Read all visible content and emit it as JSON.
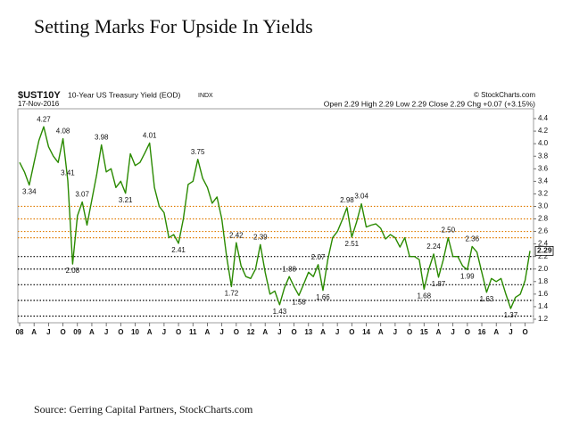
{
  "chart_data": {
    "type": "line",
    "title": "Setting Marks For Upside In Yields",
    "source": "Source: Gerring Capital Partners, StockCharts.com",
    "symbol": "$UST10Y",
    "description": "10-Year US Treasury Yield (EOD)",
    "exchange": "INDX",
    "date": "17-Nov-2016",
    "credit": "© StockCharts.com",
    "quote": "Open 2.29 High 2.29 Low 2.29 Close 2.29 Chg +0.07 (+3.15%)",
    "color": "#2a8a00",
    "x": [
      "2008-01",
      "2008-02",
      "2008-03",
      "2008-04",
      "2008-05",
      "2008-06",
      "2008-07",
      "2008-08",
      "2008-09",
      "2008-10",
      "2008-11",
      "2008-12",
      "2009-01",
      "2009-02",
      "2009-03",
      "2009-04",
      "2009-05",
      "2009-06",
      "2009-07",
      "2009-08",
      "2009-09",
      "2009-10",
      "2009-11",
      "2009-12",
      "2010-01",
      "2010-02",
      "2010-03",
      "2010-04",
      "2010-05",
      "2010-06",
      "2010-07",
      "2010-08",
      "2010-09",
      "2010-10",
      "2010-11",
      "2010-12",
      "2011-01",
      "2011-02",
      "2011-03",
      "2011-04",
      "2011-05",
      "2011-06",
      "2011-07",
      "2011-08",
      "2011-09",
      "2011-10",
      "2011-11",
      "2011-12",
      "2012-01",
      "2012-02",
      "2012-03",
      "2012-04",
      "2012-05",
      "2012-06",
      "2012-07",
      "2012-08",
      "2012-09",
      "2012-10",
      "2012-11",
      "2012-12",
      "2013-01",
      "2013-02",
      "2013-03",
      "2013-04",
      "2013-05",
      "2013-06",
      "2013-07",
      "2013-08",
      "2013-09",
      "2013-10",
      "2013-11",
      "2013-12",
      "2014-01",
      "2014-02",
      "2014-03",
      "2014-04",
      "2014-05",
      "2014-06",
      "2014-07",
      "2014-08",
      "2014-09",
      "2014-10",
      "2014-11",
      "2014-12",
      "2015-01",
      "2015-02",
      "2015-03",
      "2015-04",
      "2015-05",
      "2015-06",
      "2015-07",
      "2015-08",
      "2015-09",
      "2015-10",
      "2015-11",
      "2015-12",
      "2016-01",
      "2016-02",
      "2016-03",
      "2016-04",
      "2016-05",
      "2016-06",
      "2016-07",
      "2016-08",
      "2016-09",
      "2016-10",
      "2016-11"
    ],
    "values": [
      3.7,
      3.55,
      3.34,
      3.7,
      4.05,
      4.27,
      3.95,
      3.8,
      3.7,
      4.08,
      3.41,
      2.08,
      2.85,
      3.07,
      2.7,
      3.1,
      3.5,
      3.98,
      3.55,
      3.6,
      3.3,
      3.4,
      3.21,
      3.84,
      3.65,
      3.7,
      3.85,
      4.01,
      3.3,
      3.0,
      2.9,
      2.5,
      2.55,
      2.41,
      2.8,
      3.35,
      3.4,
      3.75,
      3.45,
      3.3,
      3.05,
      3.15,
      2.8,
      2.2,
      1.72,
      2.42,
      2.05,
      1.88,
      1.85,
      2.0,
      2.39,
      1.95,
      1.6,
      1.65,
      1.43,
      1.7,
      1.88,
      1.72,
      1.58,
      1.76,
      1.95,
      1.88,
      2.07,
      1.66,
      2.15,
      2.5,
      2.6,
      2.78,
      2.98,
      2.51,
      2.75,
      3.04,
      2.67,
      2.7,
      2.72,
      2.65,
      2.48,
      2.55,
      2.5,
      2.35,
      2.5,
      2.2,
      2.2,
      2.15,
      1.68,
      2.0,
      2.24,
      1.87,
      2.15,
      2.5,
      2.2,
      2.2,
      2.05,
      1.99,
      2.36,
      2.27,
      1.95,
      1.63,
      1.85,
      1.8,
      1.85,
      1.6,
      1.37,
      1.55,
      1.6,
      1.82,
      2.29
    ],
    "annotations": [
      {
        "x": "2008-03",
        "value": 3.34
      },
      {
        "x": "2008-06",
        "value": 4.27
      },
      {
        "x": "2008-10",
        "value": 4.08
      },
      {
        "x": "2008-11",
        "value": 3.41
      },
      {
        "x": "2008-12",
        "value": 2.08
      },
      {
        "x": "2009-02",
        "value": 3.07
      },
      {
        "x": "2009-06",
        "value": 3.98
      },
      {
        "x": "2009-11",
        "value": 3.21
      },
      {
        "x": "2010-04",
        "value": 4.01
      },
      {
        "x": "2010-10",
        "value": 2.41
      },
      {
        "x": "2011-02",
        "value": 3.75
      },
      {
        "x": "2011-09",
        "value": 1.72
      },
      {
        "x": "2011-10",
        "value": 2.42
      },
      {
        "x": "2012-03",
        "value": 2.39
      },
      {
        "x": "2012-07",
        "value": 1.43
      },
      {
        "x": "2012-09",
        "value": 1.88
      },
      {
        "x": "2012-11",
        "value": 1.58
      },
      {
        "x": "2013-03",
        "value": 2.07
      },
      {
        "x": "2013-04",
        "value": 1.66
      },
      {
        "x": "2013-09",
        "value": 2.98
      },
      {
        "x": "2013-10",
        "value": 2.51
      },
      {
        "x": "2013-12",
        "value": 3.04
      },
      {
        "x": "2015-01",
        "value": 1.68
      },
      {
        "x": "2015-03",
        "value": 2.24
      },
      {
        "x": "2015-04",
        "value": 1.87
      },
      {
        "x": "2015-06",
        "value": 2.5,
        "label": "2.50"
      },
      {
        "x": "2015-10",
        "value": 1.99
      },
      {
        "x": "2015-11",
        "value": 2.36
      },
      {
        "x": "2016-02",
        "value": 1.63
      },
      {
        "x": "2016-07",
        "value": 1.37
      }
    ],
    "reference_lines": [
      {
        "value": 3.0,
        "color": "#e07b00"
      },
      {
        "value": 2.8,
        "color": "#e07b00"
      },
      {
        "value": 2.6,
        "color": "#e07b00"
      },
      {
        "value": 2.5,
        "color": "#e07b00"
      },
      {
        "value": 2.2,
        "color": "#000000"
      },
      {
        "value": 2.0,
        "color": "#000000"
      },
      {
        "value": 1.75,
        "color": "#000000"
      },
      {
        "value": 1.5,
        "color": "#000000"
      },
      {
        "value": 1.25,
        "color": "#000000"
      }
    ],
    "xlim": [
      "2008-01",
      "2016-11"
    ],
    "xticks": [
      {
        "value": "2008-01",
        "label": "08"
      },
      {
        "value": "2008-04",
        "label": "A"
      },
      {
        "value": "2008-07",
        "label": "J"
      },
      {
        "value": "2008-10",
        "label": "O"
      },
      {
        "value": "2009-01",
        "label": "09"
      },
      {
        "value": "2009-04",
        "label": "A"
      },
      {
        "value": "2009-07",
        "label": "J"
      },
      {
        "value": "2009-10",
        "label": "O"
      },
      {
        "value": "2010-01",
        "label": "10"
      },
      {
        "value": "2010-04",
        "label": "A"
      },
      {
        "value": "2010-07",
        "label": "J"
      },
      {
        "value": "2010-10",
        "label": "O"
      },
      {
        "value": "2011-01",
        "label": "11"
      },
      {
        "value": "2011-04",
        "label": "A"
      },
      {
        "value": "2011-07",
        "label": "J"
      },
      {
        "value": "2011-10",
        "label": "O"
      },
      {
        "value": "2012-01",
        "label": "12"
      },
      {
        "value": "2012-04",
        "label": "A"
      },
      {
        "value": "2012-07",
        "label": "J"
      },
      {
        "value": "2012-10",
        "label": "O"
      },
      {
        "value": "2013-01",
        "label": "13"
      },
      {
        "value": "2013-04",
        "label": "A"
      },
      {
        "value": "2013-07",
        "label": "J"
      },
      {
        "value": "2013-10",
        "label": "O"
      },
      {
        "value": "2014-01",
        "label": "14"
      },
      {
        "value": "2014-04",
        "label": "A"
      },
      {
        "value": "2014-07",
        "label": "J"
      },
      {
        "value": "2014-10",
        "label": "O"
      },
      {
        "value": "2015-01",
        "label": "15"
      },
      {
        "value": "2015-04",
        "label": "A"
      },
      {
        "value": "2015-07",
        "label": "J"
      },
      {
        "value": "2015-10",
        "label": "O"
      },
      {
        "value": "2016-01",
        "label": "16"
      },
      {
        "value": "2016-04",
        "label": "A"
      },
      {
        "value": "2016-07",
        "label": "J"
      },
      {
        "value": "2016-10",
        "label": "O"
      }
    ],
    "ylim": [
      1.2,
      4.4
    ],
    "yticks": [
      1.2,
      1.4,
      1.6,
      1.8,
      {
        "value": 2,
        "label": "2.0"
      },
      2.2,
      2.4,
      2.6,
      2.8,
      {
        "value": 3,
        "label": "3.0"
      },
      3.2,
      3.4,
      3.6,
      3.8,
      {
        "value": 4,
        "label": "4.0"
      },
      4.2,
      4.4
    ]
  }
}
